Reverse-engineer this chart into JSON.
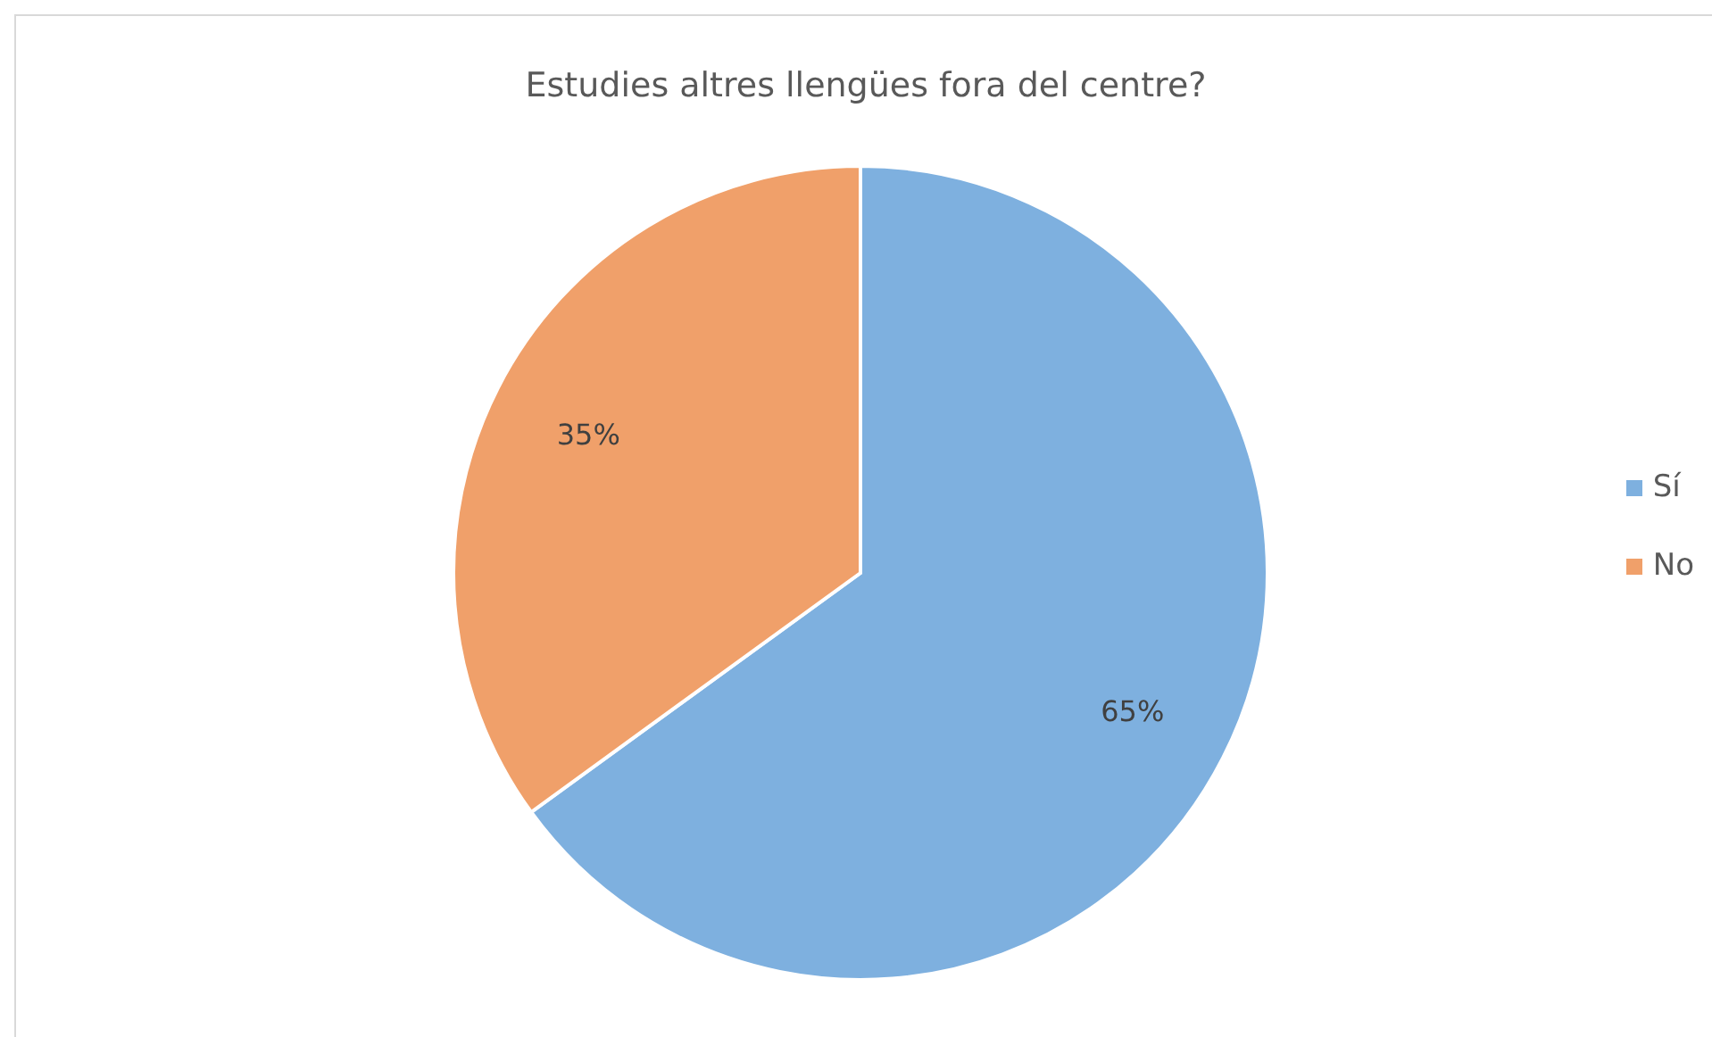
{
  "chart_data": {
    "type": "pie",
    "title": "Estudies altres llengües fora del centre?",
    "categories": [
      "Sí",
      "No"
    ],
    "values": [
      65,
      35
    ],
    "value_labels": [
      "65%",
      "35%"
    ],
    "colors": [
      "#7eb0df",
      "#f0a06a"
    ],
    "legend": "right"
  }
}
